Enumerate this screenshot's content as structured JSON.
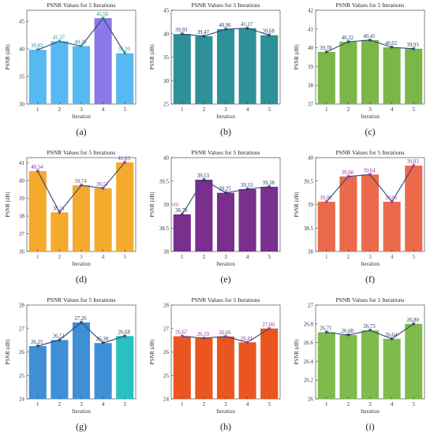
{
  "chart_data": [
    {
      "panel": "(a)",
      "type": "bar",
      "title": "PSNR Values for 5 Iterations",
      "xlabel": "Iteration",
      "ylabel": "PSNR (dB)",
      "categories": [
        "1",
        "2",
        "3",
        "4",
        "5"
      ],
      "values": [
        39.83,
        41.37,
        40.49,
        45.56,
        39.2
      ],
      "labels": [
        "39.83",
        "41.37",
        "40.49",
        "45.56",
        "39.20"
      ],
      "ylim": [
        30,
        47
      ],
      "yticks": [
        30,
        35,
        40,
        45
      ],
      "yticklabels": [
        "30",
        "35",
        "40",
        "45"
      ],
      "bar_color": "#56b9f2",
      "highlight": {
        "index": 3,
        "color": "#8d78e8"
      },
      "line_color": "#2f4574",
      "label_color": "#178f8a"
    },
    {
      "panel": "(b)",
      "type": "bar",
      "title": "PSNR Values for 5 Iterations",
      "xlabel": "Iteration",
      "ylabel": "PSNR (dB)",
      "categories": [
        "1",
        "2",
        "3",
        "4",
        "5"
      ],
      "values": [
        39.93,
        39.47,
        40.96,
        41.17,
        39.68
      ],
      "labels": [
        "39.93",
        "39.47",
        "40.96",
        "41.17",
        "39.68"
      ],
      "ylim": [
        25,
        45
      ],
      "yticks": [
        25,
        30,
        35,
        40,
        45
      ],
      "yticklabels": [
        "25",
        "30",
        "35",
        "40",
        "45"
      ],
      "bar_color": "#2e9098",
      "line_color": "#2f4574",
      "label_color": "#1d3a60"
    },
    {
      "panel": "(c)",
      "type": "bar",
      "title": "PSNR Values for 5 Iterations",
      "xlabel": "Iteration",
      "ylabel": "PSNR (dB)",
      "categories": [
        "1",
        "2",
        "3",
        "4",
        "5"
      ],
      "values": [
        39.78,
        40.32,
        40.41,
        40.02,
        39.95
      ],
      "labels": [
        "39.78",
        "40.32",
        "40.41",
        "40.02",
        "39.95"
      ],
      "ylim": [
        37,
        42
      ],
      "yticks": [
        37,
        38,
        39,
        40,
        41,
        42
      ],
      "yticklabels": [
        "37",
        "38",
        "39",
        "40",
        "41",
        "42"
      ],
      "bar_color": "#7ab648",
      "line_color": "#2f4574",
      "label_color": "#1d3a60"
    },
    {
      "panel": "(d)",
      "type": "bar",
      "title": "PSNR Values for 5 Iterations",
      "xlabel": "Iteration",
      "ylabel": "PSNR (dB)",
      "categories": [
        "1",
        "2",
        "3",
        "4",
        "5"
      ],
      "values": [
        40.54,
        38.21,
        39.74,
        39.57,
        41.03
      ],
      "labels": [
        "40.54",
        "38.21",
        "39.74",
        "39.57",
        "41.03"
      ],
      "ylim": [
        36,
        41.3
      ],
      "yticks": [
        36,
        37,
        38,
        39,
        40,
        41
      ],
      "yticklabels": [
        "36",
        "37",
        "38",
        "39",
        "40",
        "41"
      ],
      "bar_color": "#f4aa2c",
      "line_color": "#2f4574",
      "label_color": "#7a2f93",
      "tick_color": "#b0208a"
    },
    {
      "panel": "(e)",
      "type": "bar",
      "title": "PSNR Values for 5 Iterations",
      "xlabel": "Iteration",
      "ylabel": "PSNR (dB)",
      "categories": [
        "1",
        "2",
        "3",
        "4",
        "5"
      ],
      "values": [
        38.79,
        39.53,
        39.25,
        39.33,
        39.38
      ],
      "labels": [
        "38.79",
        "39.53",
        "39.25",
        "39.33",
        "39.38"
      ],
      "ylim": [
        38,
        40
      ],
      "yticks": [
        38,
        38.5,
        39,
        39.5,
        40
      ],
      "yticklabels": [
        "38",
        "38.5",
        "39",
        "39.5",
        "40"
      ],
      "bar_color": "#7a2e8e",
      "line_color": "#2f4574",
      "label_color": "#1d3a60",
      "ref_label": "39",
      "ref_color": "#d23c8c"
    },
    {
      "panel": "(f)",
      "type": "bar",
      "title": "PSNR Values for 5 Iterations",
      "xlabel": "Iteration",
      "ylabel": "PSNR (dB)",
      "categories": [
        "1",
        "2",
        "3",
        "4",
        "5"
      ],
      "values": [
        39.06,
        39.6,
        39.64,
        39.06,
        39.83
      ],
      "labels": [
        "39.06",
        "39.60",
        "39.64",
        "39.06",
        "39.83"
      ],
      "ylim": [
        38,
        40
      ],
      "yticks": [
        38,
        38.5,
        39,
        39.5,
        40
      ],
      "yticklabels": [
        "38",
        "38.5",
        "39",
        "39.5",
        "40"
      ],
      "bar_color": "#eb6a4b",
      "line_color": "#2f4574",
      "label_color": "#9a2f9a",
      "tick_color": "#b0208a"
    },
    {
      "panel": "(g)",
      "type": "bar",
      "title": "PSNR Values for 5 Iterations",
      "xlabel": "Iteration",
      "ylabel": "PSNR (dB)",
      "categories": [
        "1",
        "2",
        "3",
        "4",
        "5"
      ],
      "values": [
        26.25,
        26.51,
        27.26,
        26.38,
        26.68
      ],
      "labels": [
        "26.25",
        "26.51",
        "27.26",
        "26.38",
        "26.68"
      ],
      "ylim": [
        24,
        28
      ],
      "yticks": [
        24,
        25,
        26,
        27,
        28
      ],
      "yticklabels": [
        "24",
        "25",
        "26",
        "27",
        "28"
      ],
      "bar_color": "#3f8fd6",
      "highlight": {
        "index": 4,
        "color": "#27c1c0"
      },
      "line_color": "#2f4574",
      "label_color": "#1d3a60"
    },
    {
      "panel": "(h)",
      "type": "bar",
      "title": "PSNR Values for 5 Iterations",
      "xlabel": "Iteration",
      "ylabel": "PSNR (dB)",
      "categories": [
        "1",
        "2",
        "3",
        "4",
        "5"
      ],
      "values": [
        26.67,
        26.59,
        26.66,
        26.41,
        27.0
      ],
      "labels": [
        "26.67",
        "26.59",
        "26.66",
        "26.41",
        "27.00"
      ],
      "ylim": [
        24,
        28
      ],
      "yticks": [
        24,
        25,
        26,
        27,
        28
      ],
      "yticklabels": [
        "24",
        "25",
        "26",
        "27",
        "28"
      ],
      "bar_color": "#ea5520",
      "line_color": "#2f4574",
      "label_color": "#8a2f9a"
    },
    {
      "panel": "(i)",
      "type": "bar",
      "title": "PSNR Values for 5 Iterations",
      "xlabel": "Iteration",
      "ylabel": "PSNR (dB)",
      "categories": [
        "1",
        "2",
        "3",
        "4",
        "5"
      ],
      "values": [
        26.71,
        26.68,
        26.73,
        26.64,
        26.8
      ],
      "labels": [
        "26.71",
        "26.68",
        "26.73",
        "26.64",
        "26.80"
      ],
      "ylim": [
        26,
        27
      ],
      "yticks": [
        26,
        26.2,
        26.4,
        26.6,
        26.8,
        27
      ],
      "yticklabels": [
        "26",
        "26.2",
        "26.4",
        "26.6",
        "26.8",
        "27"
      ],
      "bar_color": "#7fba4c",
      "line_color": "#2f4574",
      "label_color": "#1d3a60"
    }
  ]
}
